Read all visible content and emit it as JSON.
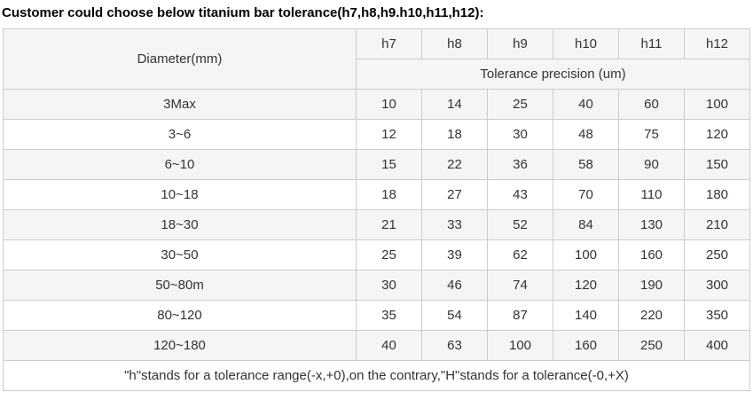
{
  "title": "Customer could choose below titanium bar tolerance(h7,h8,h9.h10,h11,h12):",
  "table": {
    "diameter_header": "Diameter(mm)",
    "grade_headers": [
      "h7",
      "h8",
      "h9",
      "h10",
      "h11",
      "h12"
    ],
    "subheader": "Tolerance precision (um)",
    "rows": [
      {
        "diameter": "3Max",
        "values": [
          "10",
          "14",
          "25",
          "40",
          "60",
          "100"
        ]
      },
      {
        "diameter": "3~6",
        "values": [
          "12",
          "18",
          "30",
          "48",
          "75",
          "120"
        ]
      },
      {
        "diameter": "6~10",
        "values": [
          "15",
          "22",
          "36",
          "58",
          "90",
          "150"
        ]
      },
      {
        "diameter": "10~18",
        "values": [
          "18",
          "27",
          "43",
          "70",
          "110",
          "180"
        ]
      },
      {
        "diameter": "18~30",
        "values": [
          "21",
          "33",
          "52",
          "84",
          "130",
          "210"
        ]
      },
      {
        "diameter": "30~50",
        "values": [
          "25",
          "39",
          "62",
          "100",
          "160",
          "250"
        ]
      },
      {
        "diameter": "50~80m",
        "values": [
          "30",
          "46",
          "74",
          "120",
          "190",
          "300"
        ]
      },
      {
        "diameter": "80~120",
        "values": [
          "35",
          "54",
          "87",
          "140",
          "220",
          "350"
        ]
      },
      {
        "diameter": "120~180",
        "values": [
          "40",
          "63",
          "100",
          "160",
          "250",
          "400"
        ]
      }
    ],
    "footnote": "\"h\"stands for a tolerance range(-x,+0),on the contrary,\"H\"stands for a tolerance(-0,+X)"
  },
  "colors": {
    "header_bg": "#f5f5f5",
    "stripe_bg": "#f5f5f5",
    "row_bg": "#ffffff",
    "border": "#cccccc",
    "text": "#333333",
    "title_text": "#000000"
  }
}
